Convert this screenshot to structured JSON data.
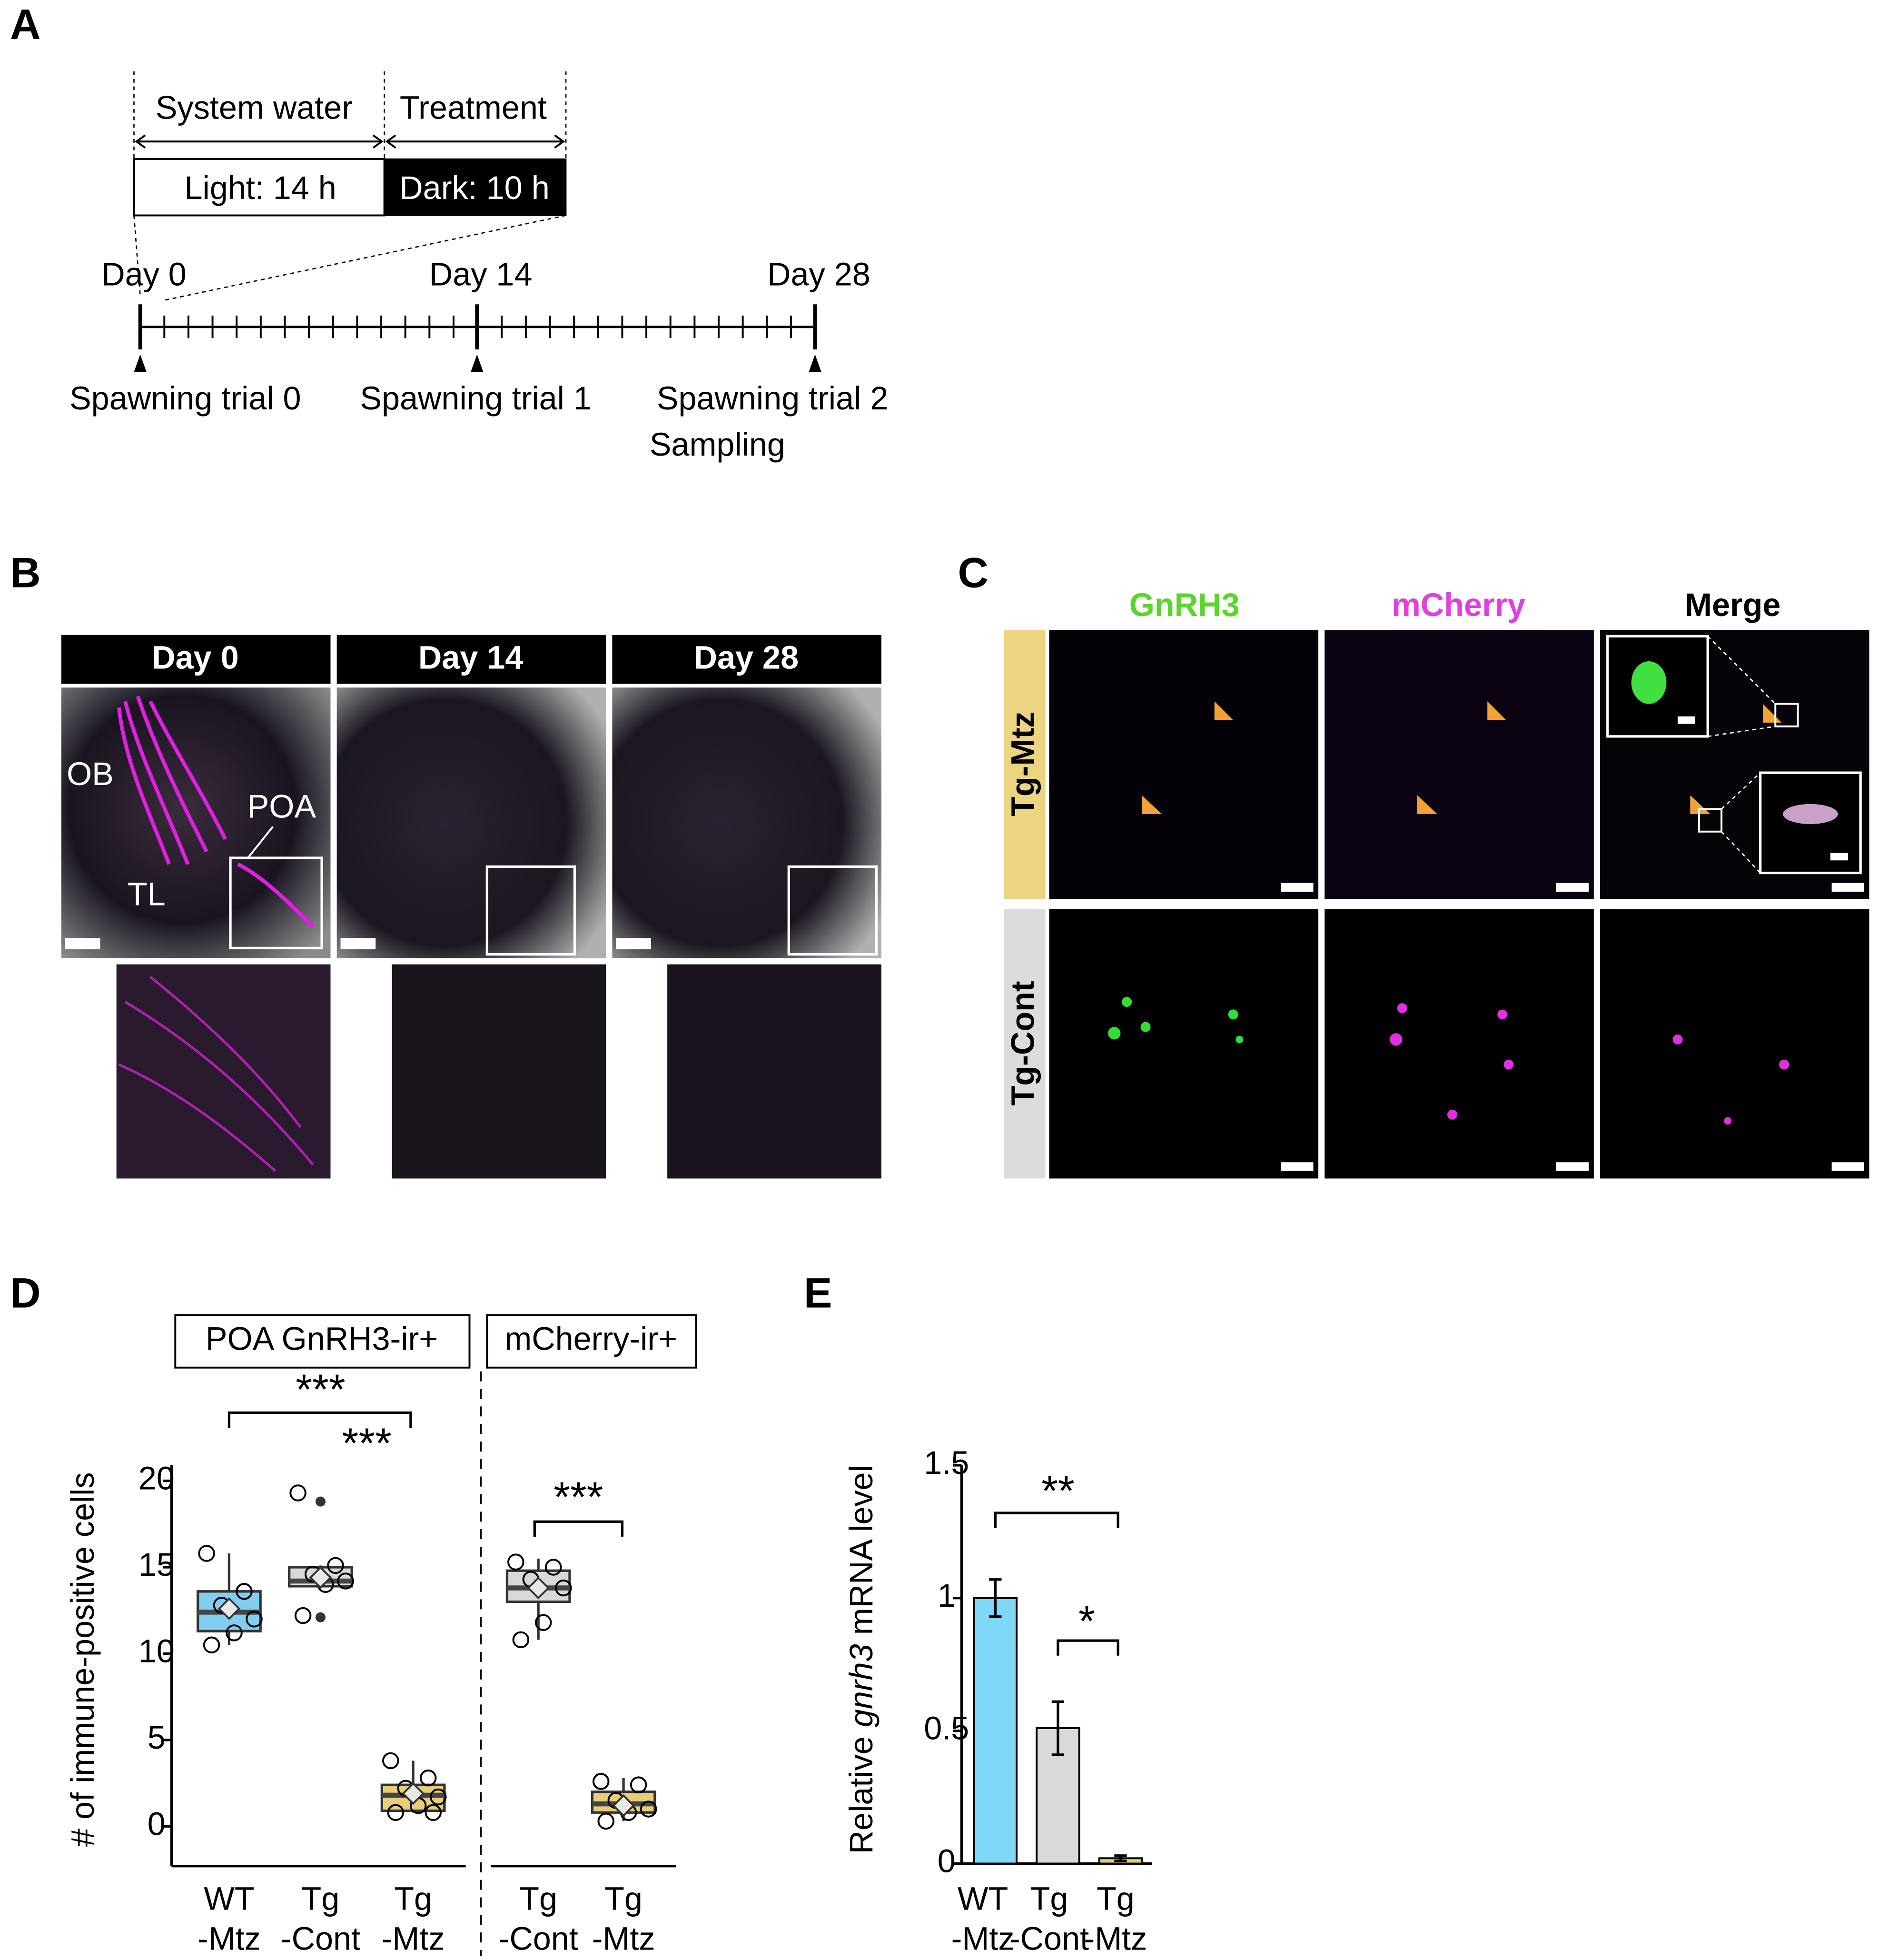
{
  "panel_labels": [
    "A",
    "B",
    "C",
    "D",
    "E"
  ],
  "timeline": {
    "phases": [
      "System water",
      "Treatment"
    ],
    "bars": [
      "Light: 14 h",
      "Dark: 10 h"
    ],
    "days": [
      "Day 0",
      "Day 14",
      "Day 28"
    ],
    "events": [
      "Spawning trial 0",
      "Spawning trial 1",
      "Spawning trial 2",
      "Sampling"
    ]
  },
  "panel_b": {
    "columns": [
      "Day 0",
      "Day 14",
      "Day 28"
    ],
    "regions": [
      "OB",
      "POA",
      "TL"
    ]
  },
  "panel_c": {
    "columns": [
      "GnRH3",
      "mCherry",
      "Merge"
    ],
    "rows": [
      "Tg-Mtz",
      "Tg-Cont"
    ]
  },
  "chart_data": [
    {
      "type": "box",
      "ylabel": "# of immune-positive cells",
      "groups": [
        "POA GnRH3-ir+",
        "mCherry-ir+"
      ],
      "categories": [
        [
          "WT",
          "-Mtz"
        ],
        [
          "Tg",
          "-Cont"
        ],
        [
          "Tg",
          "-Mtz"
        ],
        [
          "Tg",
          "-Cont"
        ],
        [
          "Tg",
          "-Mtz"
        ]
      ],
      "boxes": [
        {
          "color": "#80cff0",
          "min": 10.5,
          "q1": 11.3,
          "median": 12.4,
          "q3": 13.6,
          "max": 15.8,
          "mean": 12.6,
          "points": [
            15.8,
            13.6,
            12.8,
            12,
            11.2,
            10.5
          ],
          "outliers": []
        },
        {
          "color": "#d9d9d9",
          "min": 13.9,
          "q1": 13.9,
          "median": 14.2,
          "q3": 15,
          "max": 15.1,
          "mean": 14.4,
          "points": [
            19.3,
            15.1,
            14.6,
            14.2,
            14,
            12.2
          ],
          "outliers": [
            18.8,
            12.1
          ]
        },
        {
          "color": "#e8cd78",
          "min": 0.8,
          "q1": 0.9,
          "median": 1.8,
          "q3": 2.4,
          "max": 3.8,
          "mean": 1.9,
          "points": [
            3.8,
            2.8,
            2.2,
            1.7,
            1.2,
            0.8,
            0.8
          ],
          "outliers": []
        },
        {
          "color": "#d9d9d9",
          "min": 10.8,
          "q1": 13,
          "median": 13.8,
          "q3": 14.8,
          "max": 15.5,
          "mean": 13.8,
          "points": [
            15.3,
            15,
            14.3,
            13.8,
            11.8,
            10.8
          ],
          "outliers": []
        },
        {
          "color": "#e8cd78",
          "min": 0.3,
          "q1": 0.8,
          "median": 1.3,
          "q3": 2,
          "max": 2.8,
          "mean": 1.2,
          "points": [
            2.6,
            2.4,
            1.5,
            1,
            0.8,
            0.3
          ],
          "outliers": []
        }
      ],
      "ylim": [
        -2.3,
        20.9
      ],
      "yticks": [
        0,
        5,
        10,
        15,
        20
      ],
      "annotations": [
        "***",
        "***",
        "***"
      ]
    },
    {
      "type": "bar",
      "ylabel_parts": [
        "Relative",
        "gnrh3",
        "mRNA level"
      ],
      "categories": [
        [
          "WT",
          "-Mtz"
        ],
        [
          "Tg",
          "-Cont"
        ],
        [
          "Tg",
          "-Mtz"
        ]
      ],
      "values": [
        1,
        0.51,
        0.02
      ],
      "errors": [
        0.07,
        0.1,
        0.01
      ],
      "colors": [
        "#80d8f8",
        "#d9d9d9",
        "#e8cd78"
      ],
      "ylim": [
        0,
        1.5
      ],
      "yticks": [
        0,
        0.5,
        1,
        1.5
      ],
      "annotations": [
        "**",
        "*"
      ]
    }
  ]
}
